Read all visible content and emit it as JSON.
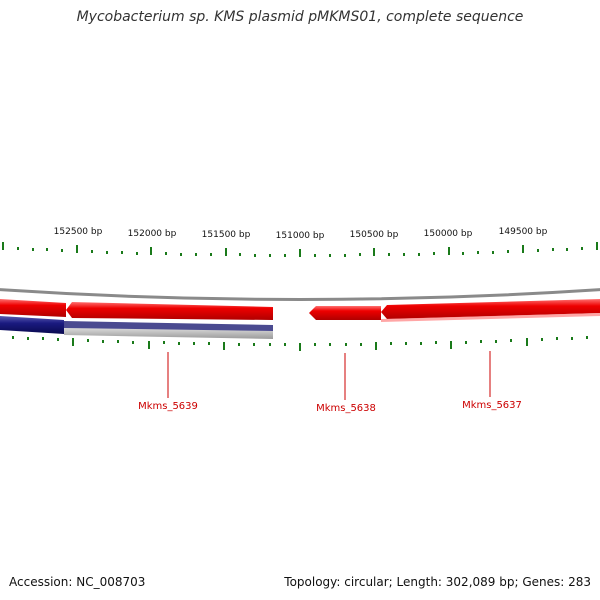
{
  "title": "Mycobacterium sp. KMS plasmid pMKMS01, complete sequence",
  "footer": {
    "accession": "Accession: NC_008703",
    "summary": "Topology: circular; Length: 302,089 bp; Genes: 283"
  },
  "map": {
    "tick_labels": [
      "152500 bp",
      "152000 bp",
      "151500 bp",
      "151000 bp",
      "150500 bp",
      "150000 bp",
      "149500 bp"
    ],
    "genes": [
      {
        "name": "Mkms_5639"
      },
      {
        "name": "Mkms_5638"
      },
      {
        "name": "Mkms_5637"
      }
    ],
    "colors": {
      "forward_gene": "#ee0000",
      "reverse_gene": "#1a1a80",
      "tick": "#1a7a1a",
      "backbone": "#888888",
      "label": "#cc0000"
    }
  }
}
